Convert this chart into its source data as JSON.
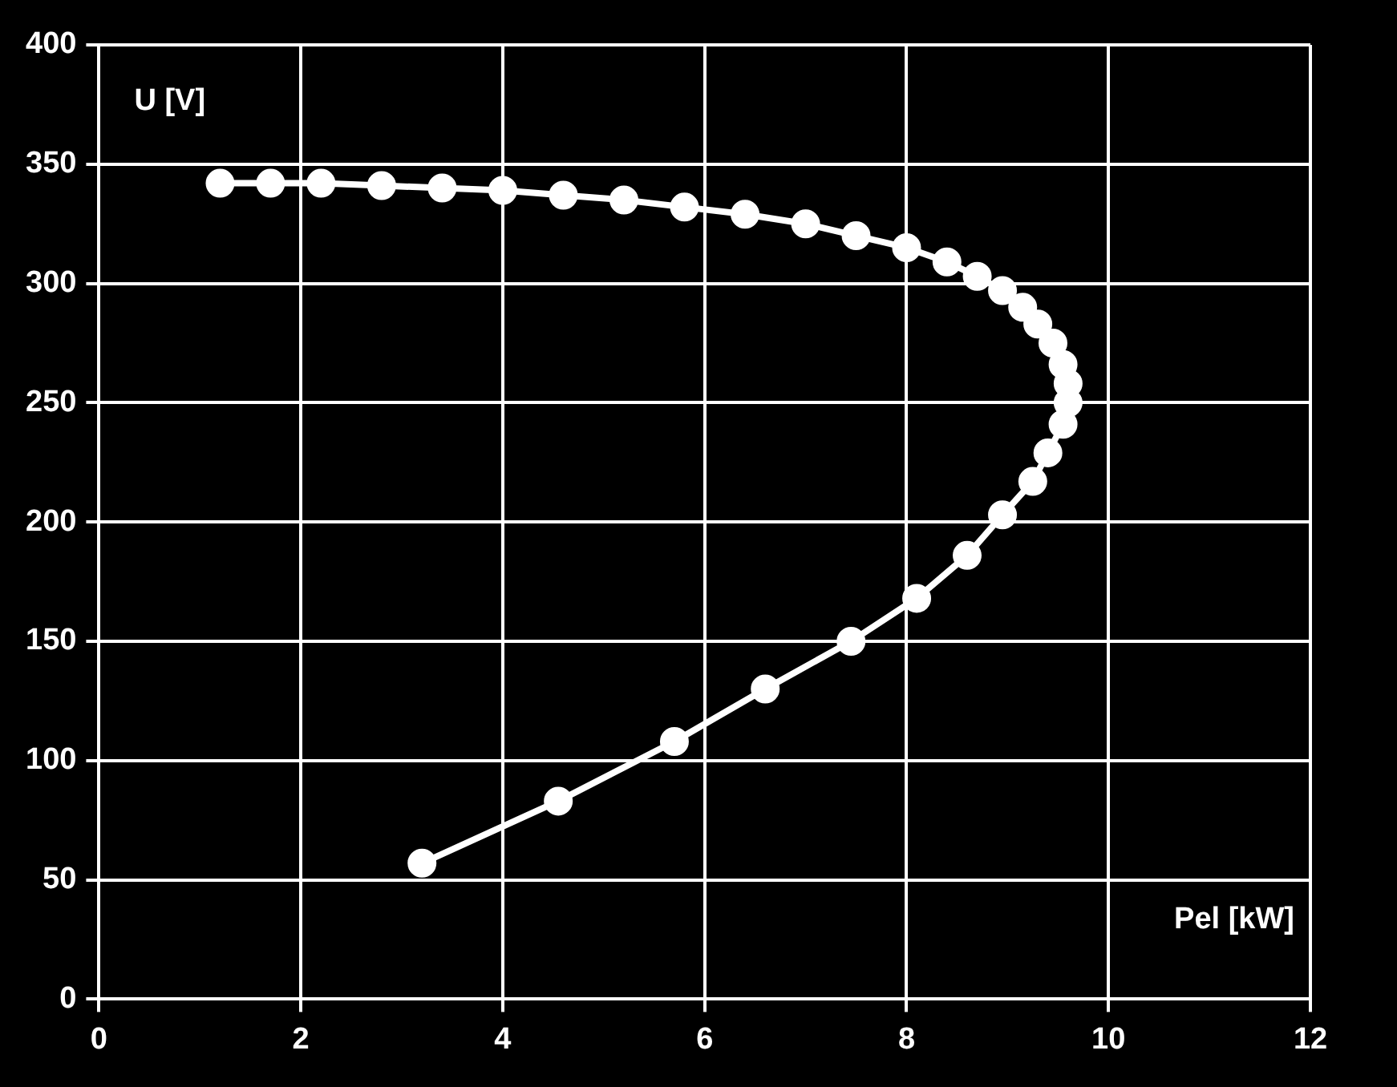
{
  "chart_data": {
    "type": "line",
    "xlabel": "Pel [kW]",
    "ylabel": "U [V]",
    "xlim": [
      0,
      12
    ],
    "xticks": [
      0,
      2,
      4,
      6,
      8,
      10,
      12
    ],
    "ylim": [
      0,
      400
    ],
    "yticks": [
      0,
      50,
      100,
      150,
      200,
      250,
      300,
      350,
      400
    ],
    "grid": true,
    "legend": false,
    "marker": "circle",
    "line_style": "solid",
    "x": [
      3.2,
      4.55,
      5.7,
      6.6,
      7.45,
      8.1,
      8.6,
      8.95,
      9.25,
      9.4,
      9.55,
      9.6,
      9.6,
      9.55,
      9.45,
      9.3,
      9.15,
      8.95,
      8.7,
      8.4,
      8.0,
      7.5,
      7.0,
      6.4,
      5.8,
      5.2,
      4.6,
      4.0,
      3.4,
      2.8,
      2.2,
      1.7,
      1.2
    ],
    "series": [
      {
        "color": "#ffffff",
        "values": [
          57,
          83,
          108,
          130,
          150,
          168,
          186,
          203,
          217,
          229,
          241,
          250,
          258,
          266,
          275,
          283,
          290,
          297,
          303,
          309,
          315,
          320,
          325,
          329,
          332,
          335,
          337,
          339,
          340,
          341,
          342,
          342,
          342
        ]
      }
    ]
  }
}
